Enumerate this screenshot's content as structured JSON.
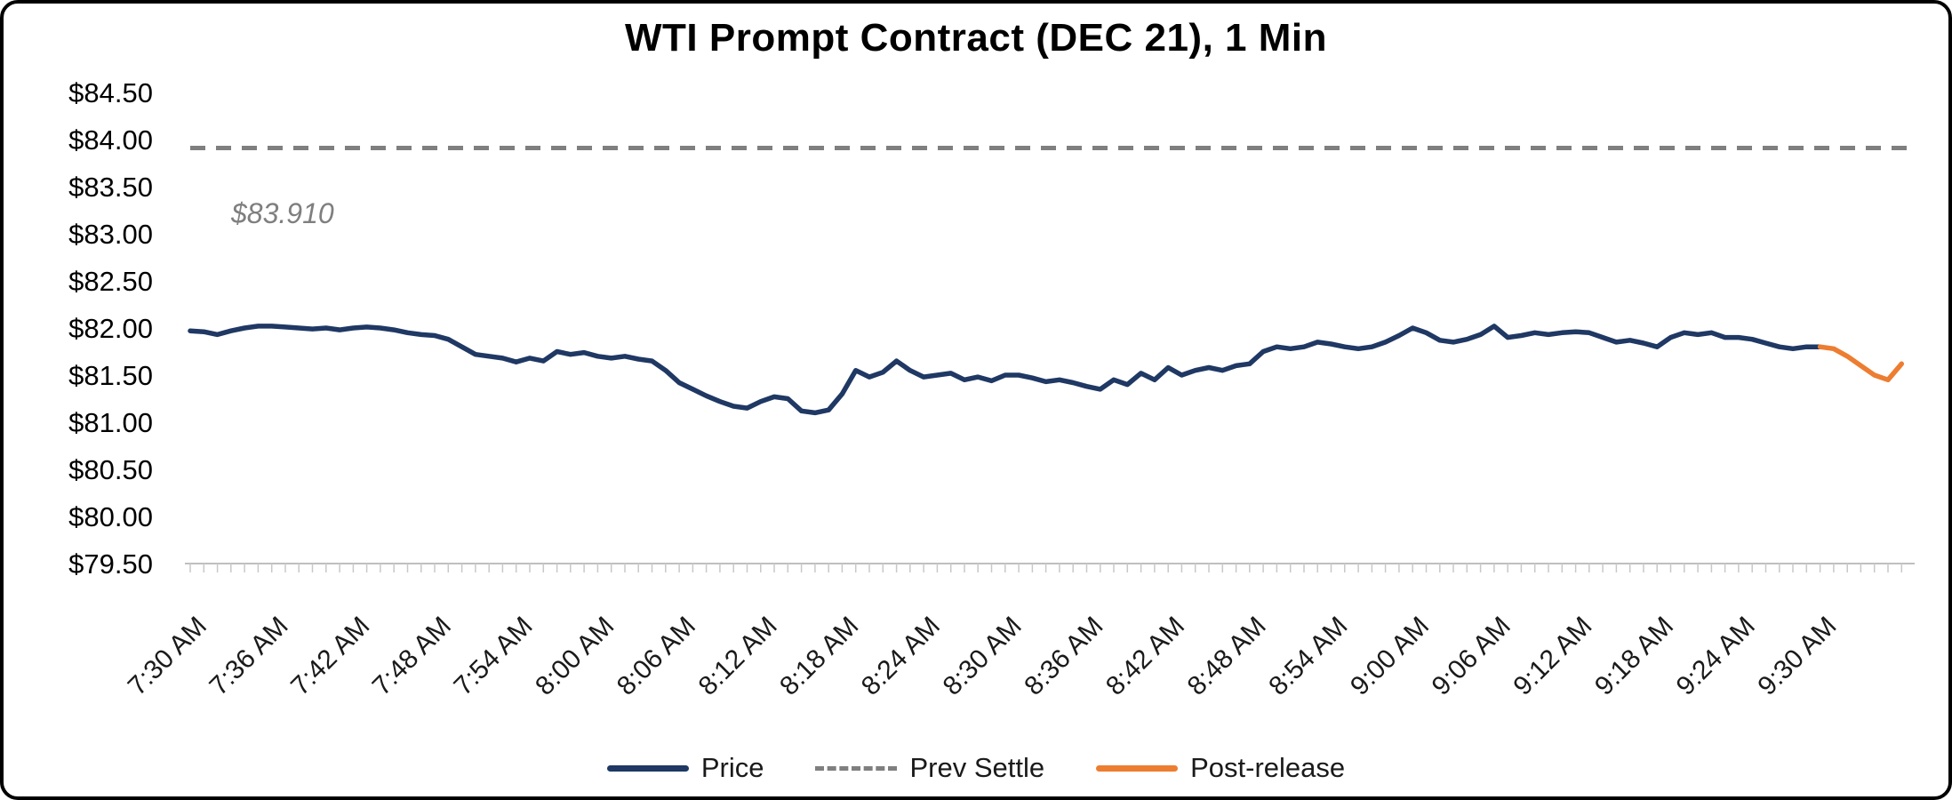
{
  "frame": {
    "background": "#ffffff",
    "border_color": "#000000"
  },
  "chart_data": {
    "type": "line",
    "title": "WTI Prompt Contract (DEC 21), 1 Min",
    "x_axis": {
      "tick_labels": [
        "7:30 AM",
        "7:36 AM",
        "7:42 AM",
        "7:48 AM",
        "7:54 AM",
        "8:00 AM",
        "8:06 AM",
        "8:12 AM",
        "8:18 AM",
        "8:24 AM",
        "8:30 AM",
        "8:36 AM",
        "8:42 AM",
        "8:48 AM",
        "8:54 AM",
        "9:00 AM",
        "9:06 AM",
        "9:12 AM",
        "9:18 AM",
        "9:24 AM",
        "9:30 AM"
      ],
      "tick_interval_minutes": 6,
      "start_minute": 0,
      "end_minute": 126,
      "minor_tick_every_minute": true
    },
    "y_axis": {
      "tick_labels": [
        "$84.50",
        "$84.00",
        "$83.50",
        "$83.00",
        "$82.50",
        "$82.00",
        "$81.50",
        "$81.00",
        "$80.50",
        "$80.00",
        "$79.50"
      ],
      "tick_values": [
        84.5,
        84.0,
        83.5,
        83.0,
        82.5,
        82.0,
        81.5,
        81.0,
        80.5,
        80.0,
        79.5
      ],
      "min": 79.5,
      "max": 84.5,
      "grid": false
    },
    "prev_settle": {
      "value": 83.91,
      "annotation": "$83.910",
      "color": "#7f7f7f",
      "style": "dashed"
    },
    "series": [
      {
        "name": "Price",
        "color": "#1f3864",
        "start_minute": 0,
        "values": [
          81.97,
          81.96,
          81.93,
          81.97,
          82.0,
          82.02,
          82.02,
          82.01,
          82.0,
          81.99,
          82.0,
          81.98,
          82.0,
          82.01,
          82.0,
          81.98,
          81.95,
          81.93,
          81.92,
          81.88,
          81.8,
          81.72,
          81.7,
          81.68,
          81.64,
          81.68,
          81.65,
          81.75,
          81.72,
          81.74,
          81.7,
          81.68,
          81.7,
          81.67,
          81.65,
          81.55,
          81.42,
          81.35,
          81.28,
          81.22,
          81.17,
          81.15,
          81.22,
          81.27,
          81.25,
          81.12,
          81.1,
          81.13,
          81.3,
          81.55,
          81.48,
          81.53,
          81.65,
          81.55,
          81.48,
          81.5,
          81.52,
          81.45,
          81.48,
          81.44,
          81.5,
          81.5,
          81.47,
          81.43,
          81.45,
          81.42,
          81.38,
          81.35,
          81.45,
          81.4,
          81.52,
          81.45,
          81.58,
          81.5,
          81.55,
          81.58,
          81.55,
          81.6,
          81.62,
          81.75,
          81.8,
          81.78,
          81.8,
          81.85,
          81.83,
          81.8,
          81.78,
          81.8,
          81.85,
          81.92,
          82.0,
          81.95,
          81.87,
          81.85,
          81.88,
          81.93,
          82.02,
          81.9,
          81.92,
          81.95,
          81.93,
          81.95,
          81.96,
          81.95,
          81.9,
          81.85,
          81.87,
          81.84,
          81.8,
          81.9,
          81.95,
          81.93,
          81.95,
          81.9,
          81.9,
          81.88,
          81.84,
          81.8,
          81.78,
          81.8,
          81.8
        ]
      },
      {
        "name": "Post-release",
        "color": "#ed7d31",
        "start_minute": 120,
        "values": [
          81.8,
          81.78,
          81.7,
          81.6,
          81.5,
          81.45,
          81.62
        ]
      }
    ],
    "legend": [
      {
        "label": "Price",
        "color": "#1f3864",
        "style": "solid"
      },
      {
        "label": "Prev Settle",
        "color": "#7f7f7f",
        "style": "dashed"
      },
      {
        "label": "Post-release",
        "color": "#ed7d31",
        "style": "solid"
      }
    ],
    "legend_position": "bottom"
  }
}
